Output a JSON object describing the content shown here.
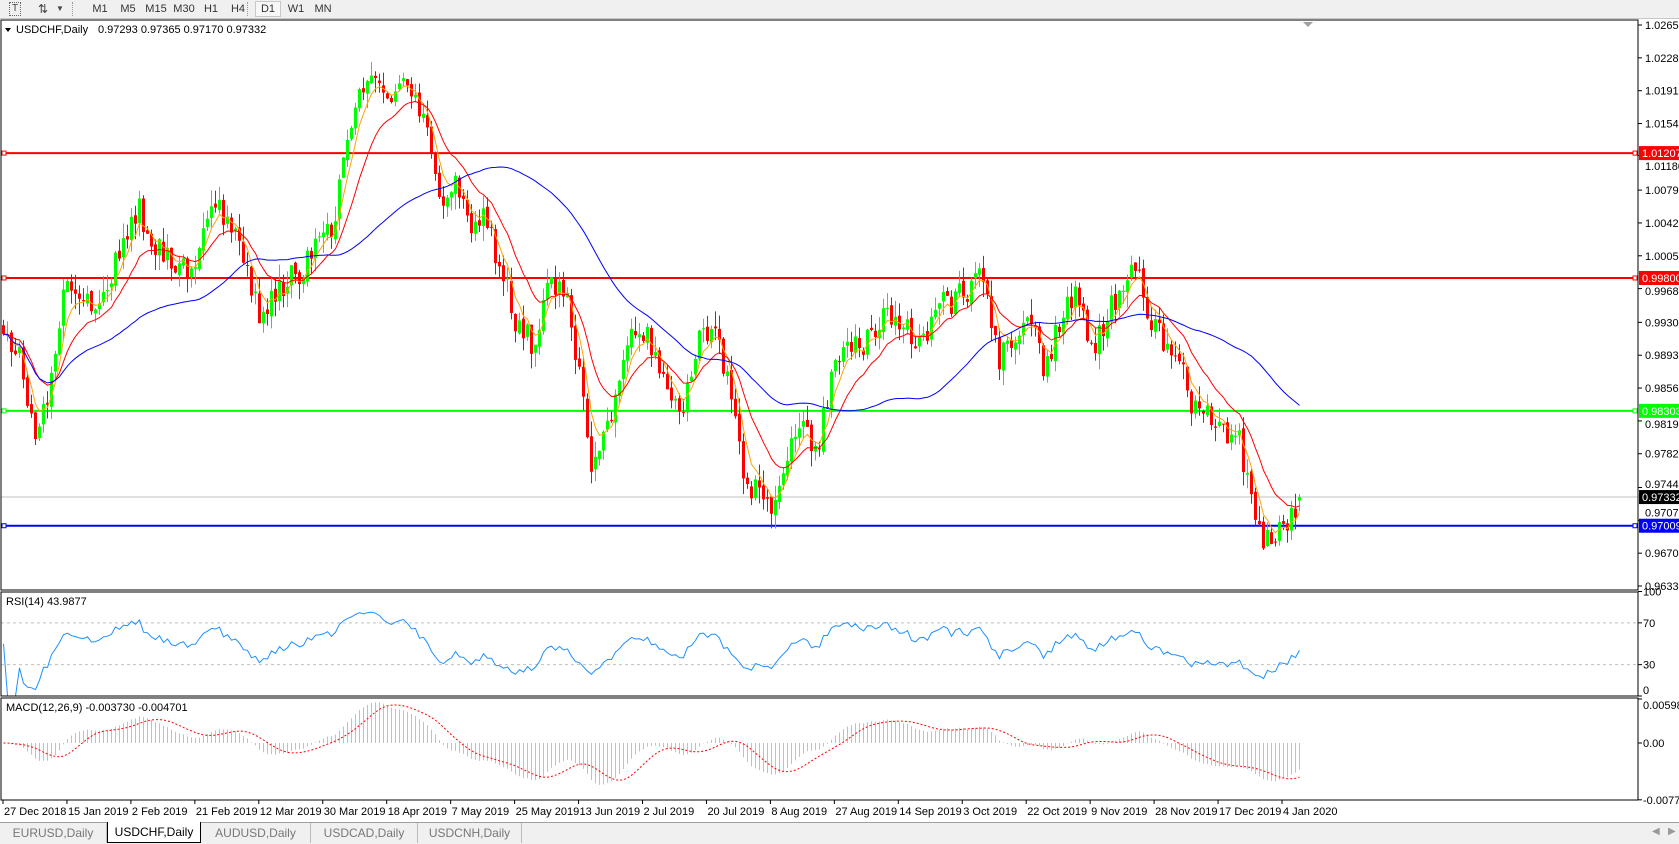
{
  "toolbar": {
    "text_tool_label": "T",
    "timeframes": [
      "M1",
      "M5",
      "M15",
      "M30",
      "H1",
      "H4",
      "D1",
      "W1",
      "MN"
    ],
    "active_timeframe": "D1"
  },
  "chart": {
    "header": "USDCHF,Daily",
    "ohlc": "0.97293 0.97365 0.97170 0.97332",
    "rsi_label": "RSI(14) 43.9877",
    "macd_label": "MACD(12,26,9) -0.003730 -0.004701"
  },
  "chart_data": {
    "type": "candlestick",
    "symbol": "USDCHF",
    "timeframe": "Daily",
    "last_bar": {
      "open": 0.97293,
      "high": 0.97365,
      "low": 0.9717,
      "close": 0.97332
    },
    "close_anchors": [
      0.99062,
      0.98942,
      0.98099,
      0.9834,
      0.99785,
      0.99664,
      0.99544,
      0.99785,
      1.00146,
      1.00627,
      1.00146,
      1.00025,
      0.99905,
      1.00146,
      1.00748,
      1.00387,
      1.00025,
      0.99423,
      0.99544,
      0.99785,
      0.99905,
      1.00146,
      1.00507,
      1.0147,
      1.01952,
      1.01952,
      1.01831,
      1.01952,
      1.0147,
      1.00627,
      1.00989,
      1.00266,
      1.00507,
      0.99905,
      0.99303,
      0.99062,
      0.99544,
      0.99905,
      0.98942,
      0.97617,
      0.98099,
      0.98821,
      0.99303,
      0.99062,
      0.98701,
      0.9834,
      0.99062,
      0.99303,
      0.98701,
      0.97617,
      0.97377,
      0.97256,
      0.97858,
      0.98099,
      0.97858,
      0.98701,
      0.98942,
      0.99062,
      0.99303,
      0.99423,
      0.99183,
      0.99062,
      0.99664,
      0.99544,
      0.99664,
      0.99785,
      0.98821,
      0.99062,
      0.99423,
      0.98821,
      0.99183,
      0.99664,
      0.99062,
      0.99183,
      0.99664,
      0.99905,
      0.99423,
      0.99062,
      0.98821,
      0.9834,
      0.98219,
      0.98099,
      0.97979,
      0.97136,
      0.96775,
      0.96955,
      0.97332
    ],
    "price_axis": {
      "min": 0.9633,
      "max": 1.0265,
      "ticks": [
        "1.02650",
        "1.02280",
        "1.01910",
        "1.01540",
        "1.01180",
        "1.00790",
        "1.00420",
        "1.00050",
        "0.99680",
        "0.99300",
        "0.98930",
        "0.98560",
        "0.98190",
        "0.97820",
        "0.97440",
        "0.97070",
        "0.96700",
        "0.96330"
      ]
    },
    "date_labels": [
      "27 Dec 2018",
      "15 Jan 2019",
      "2 Feb 2019",
      "21 Feb 2019",
      "12 Mar 2019",
      "30 Mar 2019",
      "18 Apr 2019",
      "7 May 2019",
      "25 May 2019",
      "13 Jun 2019",
      "2 Jul 2019",
      "20 Jul 2019",
      "8 Aug 2019",
      "27 Aug 2019",
      "14 Sep 2019",
      "3 Oct 2019",
      "22 Oct 2019",
      "9 Nov 2019",
      "28 Nov 2019",
      "17 Dec 2019",
      "4 Jan 2020"
    ],
    "horizontal_lines": [
      {
        "price": 1.01207,
        "label": "1.01207",
        "color": "#ff0000"
      },
      {
        "price": 0.998,
        "label": "0.99800",
        "color": "#ff0000"
      },
      {
        "price": 0.98303,
        "label": "0.98303",
        "color": "#00ff00"
      },
      {
        "price": 0.97009,
        "label": "0.97009",
        "color": "#0000ff"
      }
    ],
    "current_price": {
      "price": 0.97332,
      "label": "0.97332",
      "color": "#000000"
    },
    "moving_averages": [
      {
        "color": "#ffa500"
      },
      {
        "color": "#ff0000"
      },
      {
        "color": "#0000ff"
      }
    ],
    "candle_colors": {
      "bull": "#00ff00",
      "bear": "#ff0000"
    },
    "rsi": {
      "period": 14,
      "value": 43.9877,
      "levels": [
        70,
        30
      ],
      "axis_labels": [
        "100",
        "70",
        "30",
        "0"
      ],
      "color": "#1e90ff"
    },
    "macd": {
      "fast": 12,
      "slow": 26,
      "signal": 9,
      "main": -0.00373,
      "signal_value": -0.004701,
      "axis_labels": [
        "0.005986",
        "0.00",
        "-0.00773"
      ],
      "histogram_color": "#c0c0c0",
      "signal_color": "#ff0000"
    }
  },
  "tabs": [
    {
      "label": "EURUSD,Daily",
      "active": false
    },
    {
      "label": "USDCHF,Daily",
      "active": true
    },
    {
      "label": "AUDUSD,Daily",
      "active": false
    },
    {
      "label": "USDCAD,Daily",
      "active": false
    },
    {
      "label": "USDCNH,Daily",
      "active": false
    }
  ]
}
